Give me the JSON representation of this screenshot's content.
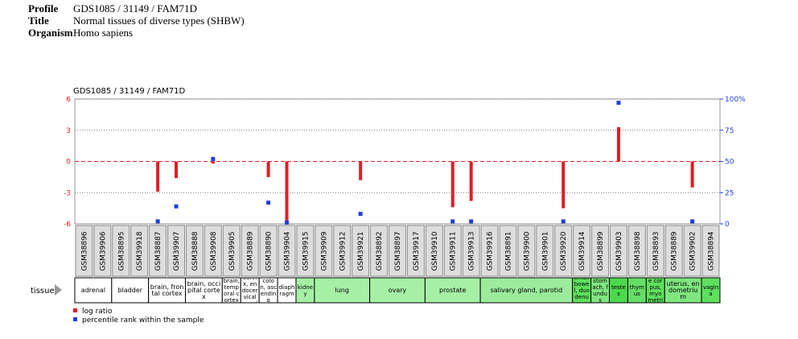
{
  "header": {
    "rows": [
      {
        "label": "Profile",
        "value": "GDS1085 / 31149 / FAM71D"
      },
      {
        "label": "Title",
        "value": "Normal tissues of diverse types (SHBW)"
      },
      {
        "label": "Organism",
        "value": "Homo sapiens"
      }
    ]
  },
  "chart_data": {
    "type": "bar",
    "title": "GDS1085 / 31149 / FAM71D",
    "categories": [
      "GSM38896",
      "GSM39906",
      "GSM38895",
      "GSM39918",
      "GSM38887",
      "GSM39907",
      "GSM38888",
      "GSM39908",
      "GSM39905",
      "GSM38889",
      "GSM38890",
      "GSM39904",
      "GSM39915",
      "GSM39909",
      "GSM39912",
      "GSM39921",
      "GSM38892",
      "GSM38897",
      "GSM39917",
      "GSM39910",
      "GSM39911",
      "GSM39913",
      "GSM39916",
      "GSM38891",
      "GSM39900",
      "GSM39901",
      "GSM39920",
      "GSM39914",
      "GSM38899",
      "GSM39903",
      "GSM38898",
      "GSM38893",
      "GSM38889",
      "GSM39902",
      "GSM38894"
    ],
    "series": [
      {
        "name": "log ratio",
        "color": "#dd1f26",
        "values": [
          null,
          null,
          null,
          null,
          -2.9,
          -1.6,
          null,
          -0.2,
          null,
          null,
          -1.5,
          -6,
          null,
          null,
          null,
          -1.8,
          null,
          null,
          null,
          null,
          -4.4,
          -3.8,
          null,
          null,
          null,
          null,
          -4.5,
          null,
          null,
          3.3,
          null,
          null,
          null,
          -2.5,
          null
        ]
      },
      {
        "name": "percentile rank within the sample",
        "color": "#1f3fd8",
        "axis": "y2",
        "values": [
          null,
          null,
          null,
          null,
          2,
          14,
          null,
          52,
          null,
          null,
          17,
          1,
          null,
          null,
          null,
          8,
          null,
          null,
          null,
          null,
          2,
          2,
          null,
          null,
          null,
          null,
          2,
          null,
          null,
          97,
          null,
          null,
          null,
          2,
          null
        ]
      }
    ],
    "ylim": [
      -6,
      6
    ],
    "yticks": [
      -6,
      -3,
      0,
      3,
      6
    ],
    "y2lim": [
      0,
      100
    ],
    "y2ticks": [
      0,
      25,
      50,
      75,
      {
        "value": 100,
        "label": "100%"
      }
    ],
    "tissue_label": "tissue",
    "tissues": [
      "adrenal",
      "adrenal",
      "bladder",
      "bladder",
      "brain, frontal cortex",
      "brain, frontal cortex",
      "brain, occipital cortex",
      "brain, occipital cortex",
      "brain, temporal cortex",
      "cervix, endocervical canal",
      "colon, ascending",
      "diaphragm",
      "kidney",
      "lung",
      "lung",
      "lung",
      "ovary",
      "ovary",
      "ovary",
      "prostate",
      "prostate",
      "prostate",
      "salivary gland, parotid",
      "salivary gland, parotid",
      "salivary gland, parotid",
      "salivary gland, parotid",
      "salivary gland, parotid",
      "small bowel, duodenum",
      "stomach, fundus",
      "testes",
      "thymus",
      "uterine corpus, myometrium",
      "uterus, endometrium",
      "uterus, endometrium",
      "vagina"
    ],
    "tissue_colors": [
      "#ffffff",
      "#ffffff",
      "#ffffff",
      "#ffffff",
      "#ffffff",
      "#ffffff",
      "#ffffff",
      "#ffffff",
      "#ffffff",
      "#ffffff",
      "#ffffff",
      "#ffffff",
      "#a6f0a6",
      "#a6f0a6",
      "#a6f0a6",
      "#a6f0a6",
      "#a6f0a6",
      "#a6f0a6",
      "#a6f0a6",
      "#a6f0a6",
      "#a6f0a6",
      "#a6f0a6",
      "#9ceb9c",
      "#9ceb9c",
      "#9ceb9c",
      "#9ceb9c",
      "#9ceb9c",
      "#5ee05e",
      "#7fe67f",
      "#4cd94c",
      "#66dd66",
      "#5ee05e",
      "#7fe67f",
      "#7fe67f",
      "#5ee05e"
    ]
  }
}
